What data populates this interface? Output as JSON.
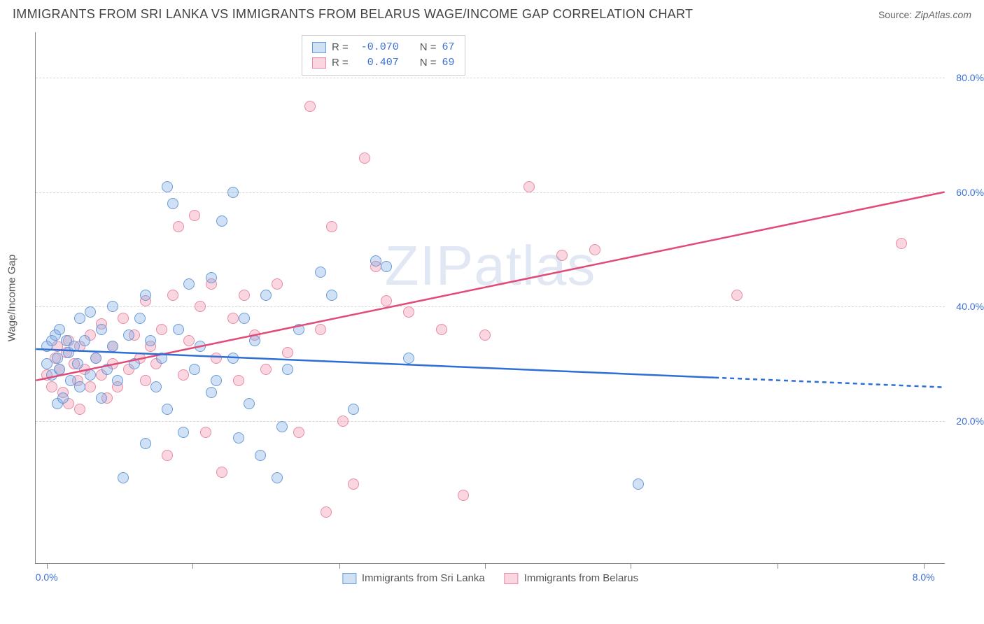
{
  "title": "IMMIGRANTS FROM SRI LANKA VS IMMIGRANTS FROM BELARUS WAGE/INCOME GAP CORRELATION CHART",
  "source_prefix": "Source: ",
  "source": "ZipAtlas.com",
  "y_axis_title": "Wage/Income Gap",
  "watermark": "ZIPatlas",
  "chart": {
    "type": "scatter",
    "xlim": [
      -0.1,
      8.2
    ],
    "ylim": [
      -5,
      88
    ],
    "y_ticks": [
      20.0,
      40.0,
      60.0,
      80.0
    ],
    "y_tick_labels": [
      "20.0%",
      "40.0%",
      "60.0%",
      "80.0%"
    ],
    "x_tick_labels_shown": [
      "0.0%",
      "8.0%"
    ],
    "x_ticks_positions": [
      0,
      1.33,
      2.67,
      4.0,
      5.33,
      6.67,
      8.0
    ],
    "background_color": "#ffffff",
    "grid_color": "#d8d8d8",
    "axis_color": "#888888",
    "label_color": "#3b6fd6",
    "title_color": "#444444",
    "title_fontsize": 18,
    "label_fontsize": 14,
    "marker_radius": 8,
    "marker_fill_opacity": 0.35,
    "line_width": 2.5
  },
  "series": {
    "sri_lanka": {
      "label": "Immigrants from Sri Lanka",
      "fill_color": "rgba(120,165,225,0.35)",
      "stroke_color": "#6a9bd8",
      "line_color": "#2d6fd6",
      "R": "-0.070",
      "N": "67",
      "trend": {
        "x1": -0.1,
        "y1": 32.5,
        "x2": 6.1,
        "y2": 27.5,
        "dash_from_x": 6.1,
        "dash_to_x": 8.2,
        "dash_to_y": 25.8
      },
      "points": [
        [
          0.0,
          33
        ],
        [
          0.0,
          30
        ],
        [
          0.05,
          34
        ],
        [
          0.05,
          28
        ],
        [
          0.08,
          35
        ],
        [
          0.1,
          23
        ],
        [
          0.1,
          31
        ],
        [
          0.12,
          36
        ],
        [
          0.12,
          29
        ],
        [
          0.15,
          24
        ],
        [
          0.18,
          34
        ],
        [
          0.2,
          32
        ],
        [
          0.22,
          27
        ],
        [
          0.25,
          33
        ],
        [
          0.28,
          30
        ],
        [
          0.3,
          38
        ],
        [
          0.3,
          26
        ],
        [
          0.35,
          34
        ],
        [
          0.4,
          39
        ],
        [
          0.4,
          28
        ],
        [
          0.45,
          31
        ],
        [
          0.5,
          36
        ],
        [
          0.5,
          24
        ],
        [
          0.55,
          29
        ],
        [
          0.6,
          40
        ],
        [
          0.6,
          33
        ],
        [
          0.65,
          27
        ],
        [
          0.7,
          10
        ],
        [
          0.75,
          35
        ],
        [
          0.8,
          30
        ],
        [
          0.85,
          38
        ],
        [
          0.9,
          42
        ],
        [
          0.9,
          16
        ],
        [
          0.95,
          34
        ],
        [
          1.0,
          26
        ],
        [
          1.05,
          31
        ],
        [
          1.1,
          61
        ],
        [
          1.1,
          22
        ],
        [
          1.15,
          58
        ],
        [
          1.2,
          36
        ],
        [
          1.25,
          18
        ],
        [
          1.3,
          44
        ],
        [
          1.35,
          29
        ],
        [
          1.4,
          33
        ],
        [
          1.5,
          25
        ],
        [
          1.5,
          45
        ],
        [
          1.55,
          27
        ],
        [
          1.6,
          55
        ],
        [
          1.7,
          60
        ],
        [
          1.7,
          31
        ],
        [
          1.75,
          17
        ],
        [
          1.8,
          38
        ],
        [
          1.85,
          23
        ],
        [
          1.9,
          34
        ],
        [
          1.95,
          14
        ],
        [
          2.0,
          42
        ],
        [
          2.1,
          10
        ],
        [
          2.15,
          19
        ],
        [
          2.2,
          29
        ],
        [
          2.3,
          36
        ],
        [
          2.5,
          46
        ],
        [
          2.6,
          42
        ],
        [
          2.8,
          22
        ],
        [
          3.0,
          48
        ],
        [
          3.1,
          47
        ],
        [
          3.3,
          31
        ],
        [
          5.4,
          9
        ]
      ]
    },
    "belarus": {
      "label": "Immigrants from Belarus",
      "fill_color": "rgba(240,140,165,0.35)",
      "stroke_color": "#e88aa3",
      "line_color": "#e24a77",
      "R": "0.407",
      "N": "69",
      "trend": {
        "x1": -0.1,
        "y1": 27.0,
        "x2": 8.2,
        "y2": 60.0
      },
      "points": [
        [
          0.0,
          28
        ],
        [
          0.05,
          26
        ],
        [
          0.08,
          31
        ],
        [
          0.1,
          33
        ],
        [
          0.12,
          29
        ],
        [
          0.15,
          25
        ],
        [
          0.18,
          32
        ],
        [
          0.2,
          34
        ],
        [
          0.2,
          23
        ],
        [
          0.25,
          30
        ],
        [
          0.28,
          27
        ],
        [
          0.3,
          33
        ],
        [
          0.3,
          22
        ],
        [
          0.35,
          29
        ],
        [
          0.4,
          35
        ],
        [
          0.4,
          26
        ],
        [
          0.45,
          31
        ],
        [
          0.5,
          28
        ],
        [
          0.5,
          37
        ],
        [
          0.55,
          24
        ],
        [
          0.6,
          33
        ],
        [
          0.6,
          30
        ],
        [
          0.65,
          26
        ],
        [
          0.7,
          38
        ],
        [
          0.75,
          29
        ],
        [
          0.8,
          35
        ],
        [
          0.85,
          31
        ],
        [
          0.9,
          41
        ],
        [
          0.9,
          27
        ],
        [
          0.95,
          33
        ],
        [
          1.0,
          30
        ],
        [
          1.05,
          36
        ],
        [
          1.1,
          14
        ],
        [
          1.15,
          42
        ],
        [
          1.2,
          54
        ],
        [
          1.25,
          28
        ],
        [
          1.3,
          34
        ],
        [
          1.35,
          56
        ],
        [
          1.4,
          40
        ],
        [
          1.45,
          18
        ],
        [
          1.5,
          44
        ],
        [
          1.55,
          31
        ],
        [
          1.6,
          11
        ],
        [
          1.7,
          38
        ],
        [
          1.75,
          27
        ],
        [
          1.8,
          42
        ],
        [
          1.9,
          35
        ],
        [
          2.0,
          29
        ],
        [
          2.1,
          44
        ],
        [
          2.2,
          32
        ],
        [
          2.3,
          18
        ],
        [
          2.4,
          75
        ],
        [
          2.5,
          36
        ],
        [
          2.55,
          4
        ],
        [
          2.6,
          54
        ],
        [
          2.7,
          20
        ],
        [
          2.8,
          9
        ],
        [
          2.9,
          66
        ],
        [
          3.0,
          47
        ],
        [
          3.1,
          41
        ],
        [
          3.3,
          39
        ],
        [
          3.6,
          36
        ],
        [
          3.8,
          7
        ],
        [
          4.0,
          35
        ],
        [
          4.4,
          61
        ],
        [
          4.7,
          49
        ],
        [
          5.0,
          50
        ],
        [
          6.3,
          42
        ],
        [
          7.8,
          51
        ]
      ]
    }
  },
  "legend_stats": {
    "r_label": "R =",
    "n_label": "N ="
  }
}
